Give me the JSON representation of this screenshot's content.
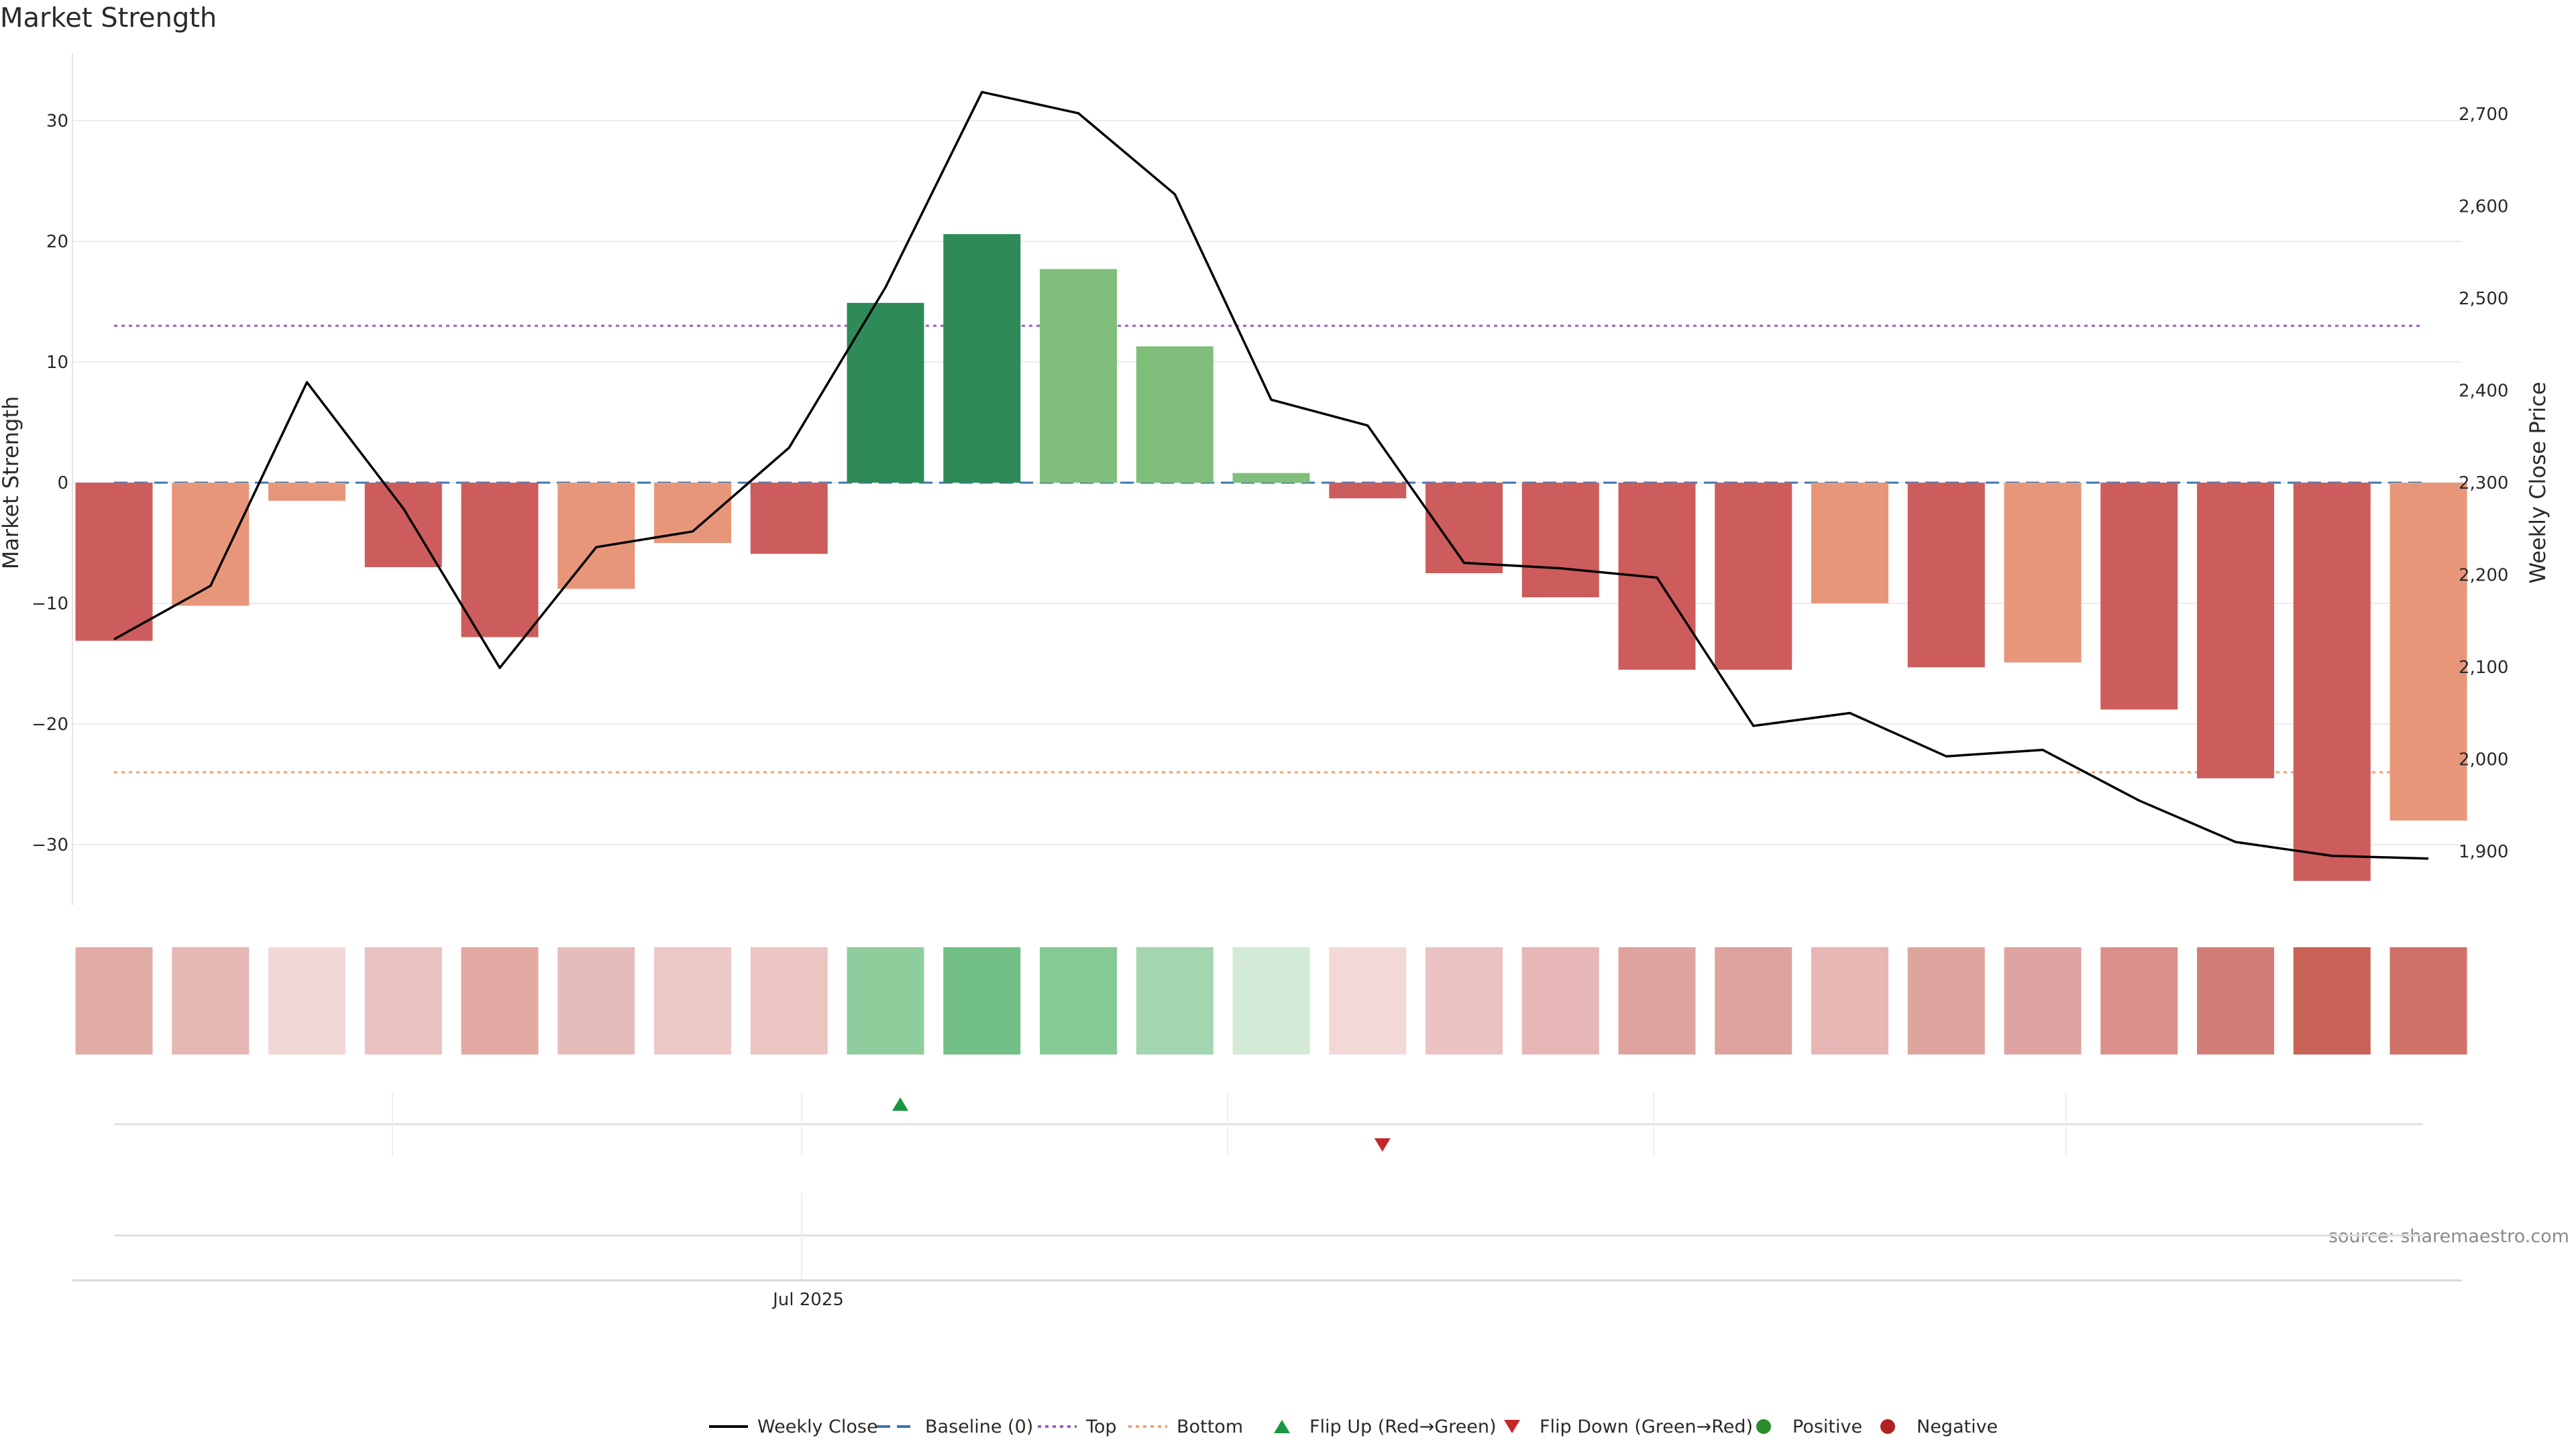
{
  "chart_data": {
    "type": "bar",
    "title": "Market Strength",
    "ylabel": "Market Strength",
    "y2label": "Weekly Close Price",
    "source": "source: sharemaestro.com",
    "ylim": [
      -36,
      36
    ],
    "y2lim": [
      1859,
      2743
    ],
    "yticks": [
      30,
      20,
      10,
      0,
      -10,
      -20,
      -30
    ],
    "yticklabels": [
      "30",
      "20",
      "10",
      "0",
      "−10",
      "−20",
      "−30"
    ],
    "y2ticks": [
      2700,
      2600,
      2500,
      2400,
      2300,
      2200,
      2100,
      2000,
      1900
    ],
    "y2ticklabels": [
      "2,700",
      "2,600",
      "2,500",
      "2,400",
      "2,300",
      "2,200",
      "2,100",
      "2,000",
      "1,900"
    ],
    "x_tick": {
      "index": 7.2,
      "label": "Jul 2025"
    },
    "grid": true,
    "legend_position": "bottom",
    "baseline": 0,
    "top_level": 13,
    "bottom_level": -24,
    "strength": [
      -13.1,
      -10.2,
      -1.5,
      -7.0,
      -12.8,
      -8.8,
      -5.0,
      -5.9,
      14.9,
      20.6,
      17.7,
      11.3,
      0.8,
      -1.3,
      -7.5,
      -9.5,
      -15.5,
      -15.5,
      -10.0,
      -15.3,
      -14.9,
      -18.8,
      -24.5,
      -33.0,
      -28.0
    ],
    "weekly_close": [
      2130,
      2188,
      2409,
      2272,
      2099,
      2230,
      2247,
      2338,
      2512,
      2724,
      2701,
      2613,
      2390,
      2362,
      2213,
      2207,
      2197,
      2036,
      2050,
      2003,
      2010,
      1955,
      1910,
      1895,
      1892
    ],
    "heat_colors": [
      "#e1aca6",
      "#e5b7b4",
      "#f1d8d7",
      "#e9c2c1",
      "#e3a8a2",
      "#e6bcba",
      "#ecc8c6",
      "#eac5c1",
      "#8fcd9d",
      "#71bf84",
      "#85c994",
      "#a2d5b0",
      "#d2ead6",
      "#f2d9d8",
      "#ebc3c2",
      "#e6b7b6",
      "#dea39f",
      "#dda29d",
      "#e6b5b4",
      "#dea59f",
      "#dfa4a2",
      "#db908c",
      "#d37d77",
      "#c96357",
      "#cf7169"
    ],
    "flip_up_indices": [
      8
    ],
    "flip_down_indices": [
      13
    ],
    "legend": [
      {
        "label": "Weekly Close",
        "marker": "line-solid",
        "color": "#000000"
      },
      {
        "label": "Baseline (0)",
        "marker": "line-dashed",
        "color": "#3b76b0"
      },
      {
        "label": "Top",
        "marker": "line-dotted",
        "color": "#9b59c8"
      },
      {
        "label": "Bottom",
        "marker": "line-dotted",
        "color": "#f0a070"
      },
      {
        "label": "Flip Up (Red→Green)",
        "marker": "triangle-up",
        "color": "#1a9641"
      },
      {
        "label": "Flip Down (Green→Red)",
        "marker": "triangle-down",
        "color": "#c62828"
      },
      {
        "label": "Positive",
        "marker": "dot",
        "color": "#2a8c2a"
      },
      {
        "label": "Negative",
        "marker": "dot",
        "color": "#b22222"
      }
    ],
    "colors": {
      "strong_negative": "#cd5c5c",
      "weak_negative": "#e8967a",
      "strong_positive": "#2e8b57",
      "weak_positive": "#7fbf7b",
      "close_line": "#000000",
      "grid": "#ececec"
    }
  }
}
